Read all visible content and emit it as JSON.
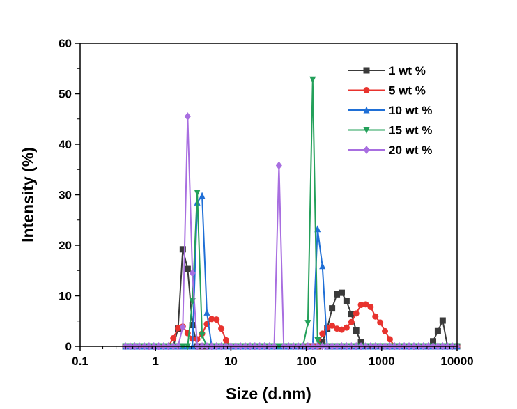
{
  "chart_data": {
    "type": "line",
    "title": "",
    "xlabel": "Size (d.nm)",
    "ylabel": "Intensity (%)",
    "xscale": "log",
    "xlim": [
      0.1,
      10000
    ],
    "ylim": [
      0,
      60
    ],
    "x_ticks": [
      0.1,
      1,
      10,
      100,
      1000,
      10000
    ],
    "x_tick_labels": [
      "0.1",
      "1",
      "10",
      "100",
      "1000",
      "10000"
    ],
    "y_ticks": [
      0,
      10,
      20,
      30,
      40,
      50,
      60
    ],
    "y_tick_labels": [
      "0",
      "10",
      "20",
      "30",
      "40",
      "50",
      "60"
    ],
    "grid": false,
    "legend_position": "top-right",
    "x": [
      0.4,
      0.46,
      0.53,
      0.61,
      0.71,
      0.82,
      0.95,
      1.1,
      1.28,
      1.48,
      1.72,
      1.99,
      2.3,
      2.67,
      3.09,
      3.58,
      4.15,
      4.8,
      5.56,
      6.44,
      7.46,
      8.63,
      10,
      11.6,
      13.4,
      15.5,
      18,
      20.8,
      24.1,
      27.9,
      32.4,
      37.5,
      43.4,
      50.2,
      58.2,
      67.4,
      78.1,
      90.4,
      104.9,
      121.6,
      141,
      163.5,
      189.6,
      219.8,
      254.8,
      295.2,
      341.9,
      396.1,
      458.8,
      531.2,
      615.1,
      712.4,
      825,
      955.4,
      1106,
      1281,
      1484,
      1718,
      1990,
      2305,
      2670,
      3091,
      3580,
      4145,
      4801,
      5560,
      6439,
      7456,
      8635,
      10000
    ],
    "series": [
      {
        "name": "1  wt %",
        "color": "#3a3a3a",
        "marker": "square",
        "values": [
          0,
          0,
          0,
          0,
          0,
          0,
          0,
          0,
          0,
          0,
          0,
          3.5,
          19.2,
          15.3,
          4.2,
          0,
          0,
          0,
          0,
          0,
          0,
          0,
          0,
          0,
          0,
          0,
          0,
          0,
          0,
          0,
          0,
          0,
          0,
          0,
          0,
          0,
          0,
          0,
          0,
          0,
          0,
          0.8,
          3.5,
          7.5,
          10.3,
          10.6,
          8.9,
          6.4,
          3.1,
          0.8,
          0,
          0,
          0,
          0,
          0,
          0,
          0,
          0,
          0,
          0,
          0,
          0,
          0,
          0,
          1,
          3,
          5.1,
          0,
          0,
          0
        ]
      },
      {
        "name": "5  wt %",
        "color": "#e8332e",
        "marker": "circle",
        "values": [
          0,
          0,
          0,
          0,
          0,
          0,
          0,
          0,
          0,
          0,
          1.6,
          3.6,
          3.9,
          2.6,
          1.5,
          1.4,
          2.5,
          4.4,
          5.4,
          5.3,
          3.5,
          1.2,
          0,
          0,
          0,
          0,
          0,
          0,
          0,
          0,
          0,
          0,
          0,
          0,
          0,
          0,
          0,
          0,
          0,
          0,
          0,
          2.5,
          3.7,
          4.1,
          3.5,
          3.3,
          3.7,
          4.8,
          6.5,
          8.2,
          8.3,
          7.8,
          5.9,
          4.7,
          3,
          1.4,
          0,
          0,
          0,
          0,
          0,
          0,
          0,
          0,
          0,
          0,
          0,
          0,
          0,
          0
        ]
      },
      {
        "name": "10 wt %",
        "color": "#1f6fd6",
        "marker": "triangle-up",
        "values": [
          0,
          0,
          0,
          0,
          0,
          0,
          0,
          0,
          0,
          0,
          0,
          0,
          0,
          0,
          0,
          28.5,
          29.8,
          6.7,
          0,
          0,
          0,
          0,
          0,
          0,
          0,
          0,
          0,
          0,
          0,
          0,
          0,
          0,
          0,
          0,
          0,
          0,
          0,
          0,
          0,
          0,
          23.2,
          15.9,
          0,
          0,
          0,
          0,
          0,
          0,
          0,
          0,
          0,
          0,
          0,
          0,
          0,
          0,
          0,
          0,
          0,
          0,
          0,
          0,
          0,
          0,
          0,
          0,
          0,
          0,
          0,
          0
        ]
      },
      {
        "name": "15 wt %",
        "color": "#23a05a",
        "marker": "triangle-down",
        "values": [
          0,
          0,
          0,
          0,
          0,
          0,
          0,
          0,
          0,
          0,
          0,
          0,
          0,
          0,
          8.9,
          30.4,
          2.2,
          0,
          0,
          0,
          0,
          0,
          0,
          0,
          0,
          0,
          0,
          0,
          0,
          0,
          0,
          0,
          0,
          0,
          0,
          0,
          0,
          0,
          4.6,
          52.8,
          1.2,
          0,
          0,
          0,
          0,
          0,
          0,
          0,
          0,
          0,
          0,
          0,
          0,
          0,
          0,
          0,
          0,
          0,
          0,
          0,
          0,
          0,
          0,
          0,
          0,
          0,
          0,
          0,
          0,
          0
        ]
      },
      {
        "name": "20 wt %",
        "color": "#a86ee0",
        "marker": "diamond",
        "values": [
          0,
          0,
          0,
          0,
          0,
          0,
          0,
          0,
          0,
          0,
          0,
          0,
          3.8,
          45.5,
          14.5,
          0,
          0,
          0,
          0,
          0,
          0,
          0,
          0,
          0,
          0,
          0,
          0,
          0,
          0,
          0,
          0,
          0,
          35.8,
          0,
          0,
          0,
          0,
          0,
          0,
          0,
          0,
          0,
          0,
          0,
          0,
          0,
          0,
          0,
          0,
          0,
          0,
          0,
          0,
          0,
          0,
          0,
          0,
          0,
          0,
          0,
          0,
          0,
          0,
          0,
          0,
          0,
          0,
          0,
          0,
          0
        ]
      }
    ]
  }
}
